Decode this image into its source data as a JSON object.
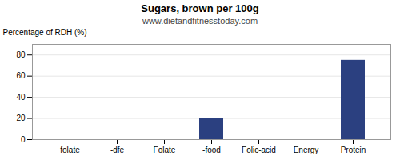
{
  "chart_data": {
    "type": "bar",
    "title": "Sugars, brown per 100g",
    "subtitle": "www.dietandfitnesstoday.com",
    "categories": [
      "folate",
      "-dfe",
      "Folate",
      "-food",
      "Folic-acid",
      "Energy",
      "Protein"
    ],
    "values": [
      0,
      0,
      0,
      20,
      0,
      0,
      75
    ],
    "color": "#2b4080",
    "ylabel": "Percentage of RDH (%)",
    "ylim": [
      0,
      90
    ],
    "yticks": [
      0,
      20,
      40,
      60,
      80
    ],
    "grid": true
  }
}
